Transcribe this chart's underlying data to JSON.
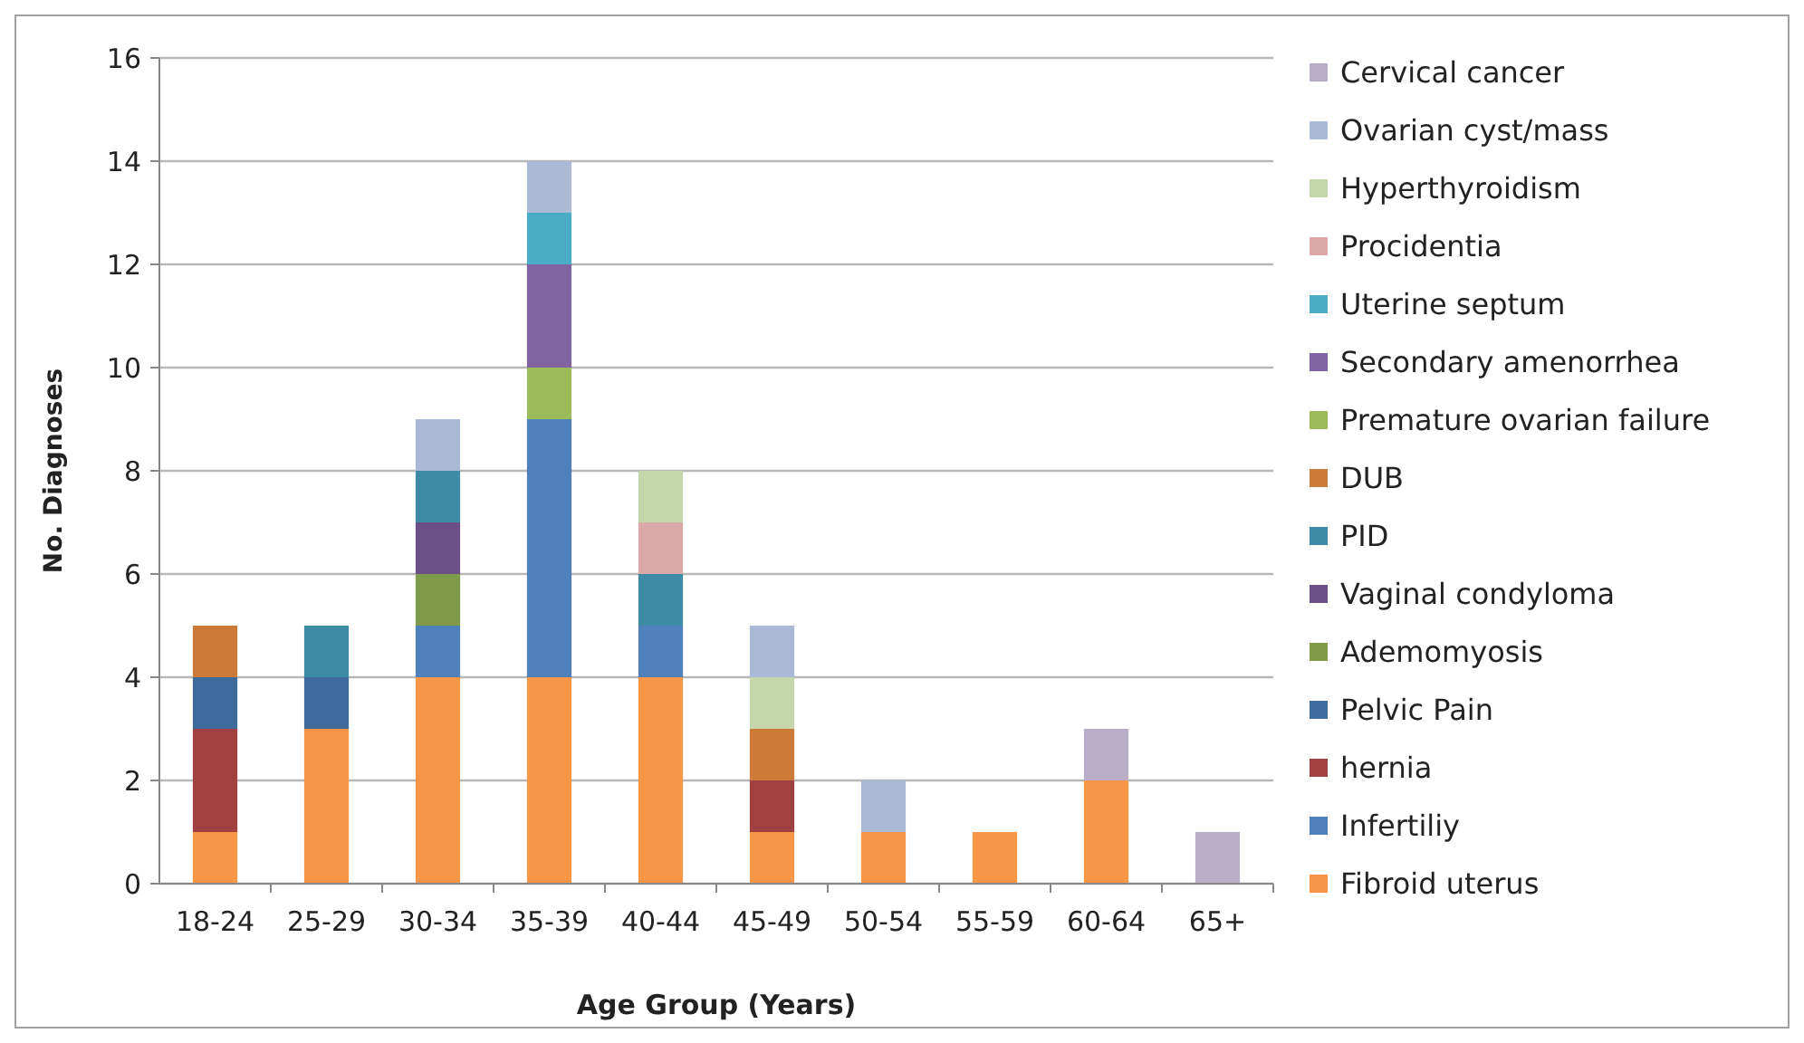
{
  "chart_data": {
    "type": "bar",
    "stacked": true,
    "xlabel": "Age Group (Years)",
    "ylabel": "No. Diagnoses",
    "categories": [
      "18-24",
      "25-29",
      "30-34",
      "35-39",
      "40-44",
      "45-49",
      "50-54",
      "55-59",
      "60-64",
      "65+"
    ],
    "ylim": [
      0,
      16
    ],
    "yticks": [
      0,
      2,
      4,
      6,
      8,
      10,
      12,
      14,
      16
    ],
    "grid": "y",
    "legend": "right",
    "series": [
      {
        "name": "Fibroid uterus",
        "color": "#f79646",
        "values": [
          1,
          3,
          4,
          4,
          4,
          1,
          1,
          1,
          2,
          0
        ]
      },
      {
        "name": "Infertiliy",
        "color": "#4f81bd",
        "values": [
          0,
          0,
          1,
          5,
          1,
          0,
          0,
          0,
          0,
          0
        ]
      },
      {
        "name": "hernia",
        "color": "#a04040",
        "values": [
          2,
          0,
          0,
          0,
          0,
          1,
          0,
          0,
          0,
          0
        ]
      },
      {
        "name": "Pelvic Pain",
        "color": "#3f6a9c",
        "values": [
          1,
          1,
          0,
          0,
          0,
          0,
          0,
          0,
          0,
          0
        ]
      },
      {
        "name": "Ademomyosis",
        "color": "#7f9a48",
        "values": [
          0,
          0,
          1,
          0,
          0,
          0,
          0,
          0,
          0,
          0
        ]
      },
      {
        "name": "Vaginal condyloma",
        "color": "#6a5084",
        "values": [
          0,
          0,
          1,
          0,
          0,
          0,
          0,
          0,
          0,
          0
        ]
      },
      {
        "name": "PID",
        "color": "#3d8ba4",
        "values": [
          0,
          1,
          1,
          0,
          1,
          0,
          0,
          0,
          0,
          0
        ]
      },
      {
        "name": "DUB",
        "color": "#cc7a38",
        "values": [
          1,
          0,
          0,
          0,
          0,
          1,
          0,
          0,
          0,
          0
        ]
      },
      {
        "name": "Premature ovarian failure",
        "color": "#9bbb59",
        "values": [
          0,
          0,
          0,
          1,
          0,
          0,
          0,
          0,
          0,
          0
        ]
      },
      {
        "name": "Secondary amenorrhea",
        "color": "#8064a2",
        "values": [
          0,
          0,
          0,
          2,
          0,
          0,
          0,
          0,
          0,
          0
        ]
      },
      {
        "name": "Uterine septum",
        "color": "#4bacc6",
        "values": [
          0,
          0,
          0,
          1,
          0,
          0,
          0,
          0,
          0,
          0
        ]
      },
      {
        "name": "Procidentia",
        "color": "#dba8a8",
        "values": [
          0,
          0,
          0,
          0,
          1,
          0,
          0,
          0,
          0,
          0
        ]
      },
      {
        "name": "Hyperthyroidism",
        "color": "#c6d6ac",
        "values": [
          0,
          0,
          0,
          0,
          1,
          1,
          0,
          0,
          0,
          0
        ]
      },
      {
        "name": "Ovarian cyst/mass",
        "color": "#aab9d6",
        "values": [
          0,
          0,
          1,
          1,
          0,
          1,
          1,
          0,
          0,
          0
        ]
      },
      {
        "name": "Cervical cancer",
        "color": "#b8aec8",
        "values": [
          0,
          0,
          0,
          0,
          0,
          0,
          0,
          0,
          1,
          1
        ]
      }
    ]
  }
}
